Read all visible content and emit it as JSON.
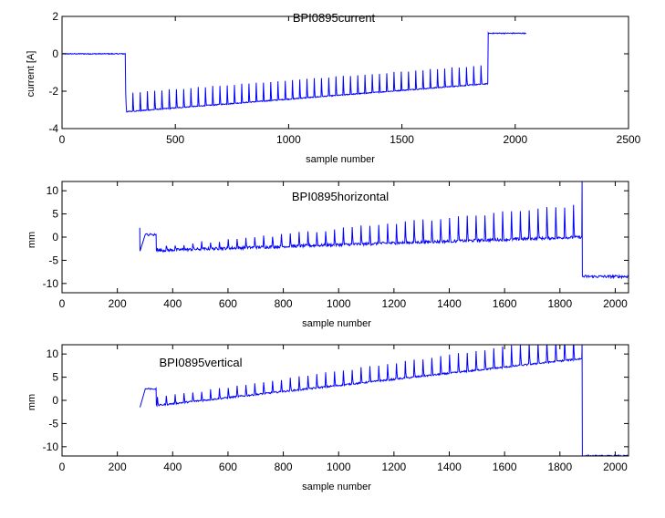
{
  "chart_data": [
    {
      "type": "line",
      "title": "BPI0895current",
      "xlabel": "sample number",
      "ylabel": "current [A]",
      "xlim": [
        0,
        2500
      ],
      "ylim": [
        -4,
        2
      ],
      "xticks": [
        0,
        500,
        1000,
        1500,
        2000,
        2500
      ],
      "yticks": [
        -4,
        -2,
        0,
        2
      ],
      "grid": false,
      "line_color": "#0000ff",
      "signal": {
        "sample_start": 1,
        "sample_end": 2048,
        "baseline_before": 0.0,
        "step_sample": 281,
        "ramp_start_value": -3.1,
        "ramp_end_value": -1.6,
        "ramp_end_sample": 1879,
        "spike_period": 32,
        "spike_height_start": 1.0,
        "spike_height_end": 1.0,
        "level_after": 1.1,
        "noise": 0.05
      }
    },
    {
      "type": "line",
      "title": "BPI0895horizontal",
      "xlabel": "sample number",
      "ylabel": "mm",
      "xlim": [
        0,
        2048
      ],
      "ylim": [
        -12,
        12
      ],
      "xticks": [
        0,
        200,
        400,
        600,
        800,
        1000,
        1200,
        1400,
        1600,
        1800,
        2000
      ],
      "yticks": [
        -10,
        -5,
        0,
        5,
        10
      ],
      "grid": false,
      "line_color": "#0000ff",
      "signal": {
        "sample_start": 281,
        "sample_end": 2048,
        "initial_spike": 2,
        "initial_plateau": 0.5,
        "ramp_start_value": -3,
        "ramp_end_value": 0,
        "ramp_end_sample": 1879,
        "spike_period": 32,
        "spike_height_start": 0.5,
        "spike_height_end": 7,
        "end_spike": 12,
        "level_after": -8.5,
        "noise": 0.6
      }
    },
    {
      "type": "line",
      "title": "BPI0895vertical",
      "xlabel": "sample number",
      "ylabel": "mm",
      "xlim": [
        0,
        2048
      ],
      "ylim": [
        -12,
        12
      ],
      "xticks": [
        0,
        200,
        400,
        600,
        800,
        1000,
        1200,
        1400,
        1600,
        1800,
        2000
      ],
      "yticks": [
        -10,
        -5,
        0,
        5,
        10
      ],
      "grid": false,
      "line_color": "#0000ff",
      "signal": {
        "sample_start": 281,
        "sample_end": 2048,
        "initial_spike": 0,
        "initial_plateau": 2.5,
        "ramp_start_value": -1.5,
        "ramp_end_value": 9,
        "ramp_end_sample": 1879,
        "spike_period": 32,
        "spike_height_start": 1.5,
        "spike_height_end": 5,
        "end_spike": 12,
        "level_after": -12,
        "noise": 0.35
      }
    }
  ]
}
